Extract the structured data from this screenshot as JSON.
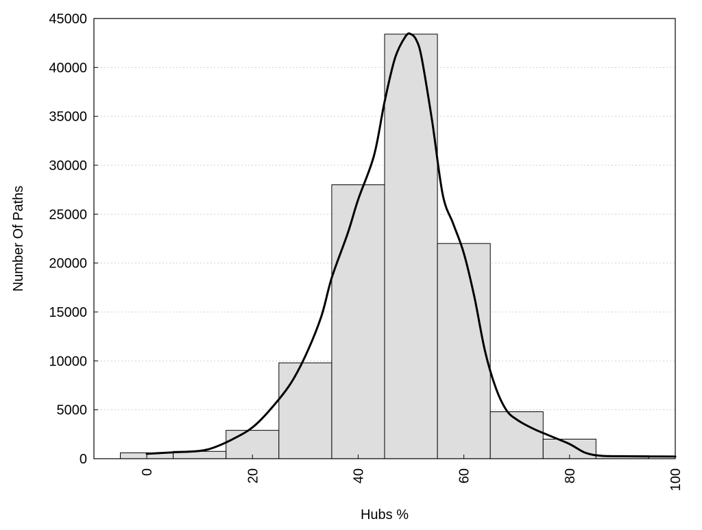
{
  "chart_data": {
    "type": "bar",
    "title": "",
    "xlabel": "Hubs %",
    "ylabel": "Number Of Paths",
    "xlim": [
      -10,
      100
    ],
    "ylim": [
      0,
      45000
    ],
    "x_ticks": [
      0,
      20,
      40,
      60,
      80,
      100
    ],
    "y_ticks": [
      0,
      5000,
      10000,
      15000,
      20000,
      25000,
      30000,
      35000,
      40000,
      45000
    ],
    "grid": "horizontal dotted",
    "colors": {
      "bar_fill": "#dedede",
      "bar_stroke": "#000000",
      "curve": "#000000"
    },
    "bars": [
      {
        "x": 0,
        "width": 10,
        "value": 600
      },
      {
        "x": 10,
        "width": 10,
        "value": 750
      },
      {
        "x": 20,
        "width": 10,
        "value": 2900
      },
      {
        "x": 30,
        "width": 10,
        "value": 9800
      },
      {
        "x": 40,
        "width": 10,
        "value": 28000
      },
      {
        "x": 50,
        "width": 10,
        "value": 43400
      },
      {
        "x": 60,
        "width": 10,
        "value": 22000
      },
      {
        "x": 70,
        "width": 10,
        "value": 4800
      },
      {
        "x": 80,
        "width": 10,
        "value": 2000
      },
      {
        "x": 90,
        "width": 10,
        "value": 300
      }
    ],
    "curve": {
      "x": [
        0,
        5,
        10,
        13,
        17,
        20,
        23,
        27,
        30,
        33,
        35,
        38,
        40,
        43,
        45,
        47,
        49,
        50,
        51,
        52,
        54,
        56,
        58,
        60,
        62,
        64,
        66,
        68,
        70,
        73,
        76,
        80,
        83,
        86,
        90,
        95,
        100
      ],
      "y": [
        500,
        650,
        800,
        1200,
        2200,
        3200,
        4800,
        7500,
        10500,
        14500,
        18500,
        23000,
        26500,
        31000,
        36500,
        41000,
        43200,
        43400,
        42800,
        41000,
        34500,
        27000,
        24000,
        21000,
        16500,
        11000,
        7300,
        5000,
        4000,
        3100,
        2400,
        1500,
        600,
        300,
        250,
        230,
        220
      ]
    }
  }
}
